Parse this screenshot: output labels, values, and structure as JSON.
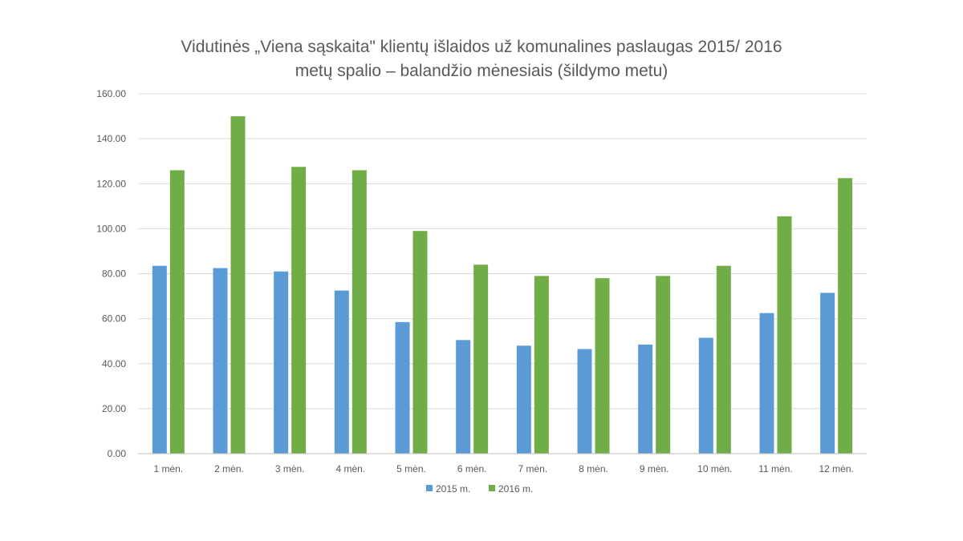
{
  "chart_data": {
    "type": "bar",
    "title_lines": [
      "Vidutinės „Viena sąskaita\" klientų išlaidos už komunalines paslaugas 2015/ 2016",
      "metų spalio – balandžio mėnesiais (šildymo metu)"
    ],
    "categories": [
      "1 mėn.",
      "2 mėn.",
      "3 mėn.",
      "4 mėn.",
      "5 mėn.",
      "6 mėn.",
      "7 mėn.",
      "8 mėn.",
      "9 mėn.",
      "10 mėn.",
      "11 mėn.",
      "12 mėn."
    ],
    "series": [
      {
        "name": "2015 m.",
        "color": "#5b9bd5",
        "values": [
          83.5,
          82.5,
          81,
          72.5,
          58.5,
          50.5,
          48,
          46.5,
          48.5,
          51.5,
          62.5,
          71.5
        ]
      },
      {
        "name": "2016 m.",
        "color": "#70ad47",
        "values": [
          126,
          150,
          127.5,
          126,
          99,
          84,
          79,
          78,
          79,
          83.5,
          105.5,
          122.5
        ]
      }
    ],
    "ylim": [
      0,
      160
    ],
    "yticks": [
      "0.00",
      "20.00",
      "40.00",
      "60.00",
      "80.00",
      "100.00",
      "120.00",
      "140.00",
      "160.00"
    ],
    "grid": true,
    "legend_position": "bottom"
  }
}
